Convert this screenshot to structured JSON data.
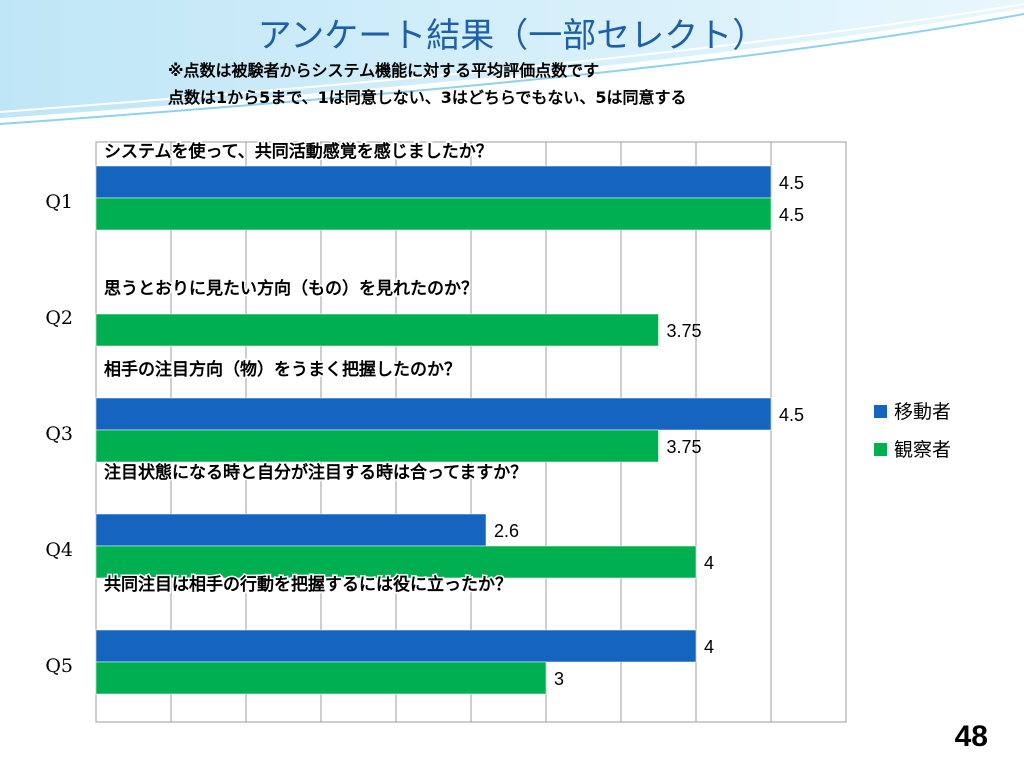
{
  "slide": {
    "title": "アンケート結果（一部セレクト）",
    "subtitle_line1": "※点数は被験者からシステム機能に対する平均評価点数です",
    "subtitle_line2": "点数は1から5まで、1は同意しない、3はどちらでもない、5は同意する",
    "page_number": "48"
  },
  "colors": {
    "title": "#1f5fa8",
    "series_mover": "#1565c0",
    "series_observer": "#00b050",
    "gridline": "#9e9e9e"
  },
  "chart_data": {
    "type": "bar",
    "orientation": "horizontal",
    "categories": [
      "Q1",
      "Q2",
      "Q3",
      "Q4",
      "Q5"
    ],
    "questions": [
      "システムを使って、共同活動感覚を感じましたか？",
      "思うとおりに見たい方向（もの）を見れたのか？",
      "相手の注目方向（物）をうまく把握したのか？",
      "注目状態になる時と自分が注目する時は合ってますか？",
      "共同注目は相手の行動を把握するには役に立ったか？"
    ],
    "series": [
      {
        "name": "移動者",
        "values": [
          4.5,
          null,
          4.5,
          2.6,
          4
        ],
        "labels": [
          "4.5",
          "",
          "4.5",
          "2.6",
          "4"
        ]
      },
      {
        "name": "観察者",
        "values": [
          4.5,
          3.75,
          3.75,
          4,
          3
        ],
        "labels": [
          "4.5",
          "3.75",
          "3.75",
          "4",
          "3"
        ]
      }
    ],
    "xlim": [
      0,
      5
    ],
    "grid": true,
    "legend": "right"
  }
}
